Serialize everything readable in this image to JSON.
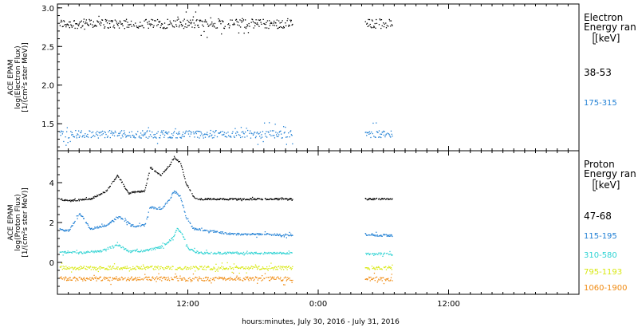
{
  "x_axis": {
    "label": "hours:minutes, July 30, 2016 - July 31, 2016",
    "range_hours": [
      0,
      48
    ],
    "ticks": [
      {
        "hour": 12,
        "label": "12:00"
      },
      {
        "hour": 24,
        "label": "0:00"
      },
      {
        "hour": 36,
        "label": "12:00"
      }
    ]
  },
  "chart_data": [
    {
      "type": "scatter",
      "instrument": "ACE EPAM",
      "ylabel_lines": [
        "ACE EPAM",
        "log(Electron Flux)",
        "[1/(cm²s ster MeV)]"
      ],
      "ylim": [
        1.15,
        3.05
      ],
      "yticks": [
        1.5,
        2.0,
        2.5,
        3.0
      ],
      "ytick_labels": [
        "1.5",
        "2.0",
        "2.5",
        "3.0"
      ],
      "legend_title": [
        "Electron",
        "Energy ran",
        "[keV]"
      ],
      "series": [
        {
          "name": "38-53",
          "color": "#000000",
          "mean": 2.8,
          "noise": 0.06
        },
        {
          "name": "175-315",
          "color": "#1f7fd4",
          "mean": 1.37,
          "noise": 0.05
        }
      ],
      "coverage_hours": [
        [
          0.2,
          21.6
        ],
        [
          28.3,
          30.8
        ]
      ]
    },
    {
      "type": "scatter",
      "instrument": "ACE EPAM",
      "ylabel_lines": [
        "ACE EPAM",
        "log(Proton Flux)",
        "[1/(cm²s ster MeV)]"
      ],
      "ylim": [
        -1.6,
        5.6
      ],
      "yticks": [
        0,
        2,
        4
      ],
      "ytick_labels": [
        "0",
        "2",
        "4"
      ],
      "legend_title": [
        "Proton",
        "Energy ran",
        "[keV]"
      ],
      "series": [
        {
          "name": "47-68",
          "color": "#000000",
          "mean": 3.15,
          "noise": 0.04,
          "profile": [
            [
              0,
              3.2
            ],
            [
              1,
              3.1
            ],
            [
              3,
              3.2
            ],
            [
              4.5,
              3.6
            ],
            [
              5.5,
              4.4
            ],
            [
              6.5,
              3.5
            ],
            [
              8,
              3.6
            ],
            [
              8.5,
              4.8
            ],
            [
              9.5,
              4.4
            ],
            [
              10.3,
              4.9
            ],
            [
              10.7,
              5.3
            ],
            [
              11.3,
              5.0
            ],
            [
              11.8,
              4.0
            ],
            [
              12.5,
              3.3
            ],
            [
              13,
              3.2
            ],
            [
              48,
              3.2
            ]
          ]
        },
        {
          "name": "115-195",
          "color": "#1f7fd4",
          "mean": 1.35,
          "noise": 0.05,
          "profile": [
            [
              0,
              1.7
            ],
            [
              1,
              1.6
            ],
            [
              2,
              2.5
            ],
            [
              3,
              1.7
            ],
            [
              4.5,
              1.9
            ],
            [
              5.5,
              2.3
            ],
            [
              6,
              2.2
            ],
            [
              7,
              1.8
            ],
            [
              8,
              1.9
            ],
            [
              8.5,
              2.8
            ],
            [
              9.5,
              2.7
            ],
            [
              10.3,
              3.2
            ],
            [
              10.7,
              3.6
            ],
            [
              11.3,
              3.3
            ],
            [
              11.8,
              2.3
            ],
            [
              12.5,
              1.7
            ],
            [
              14,
              1.6
            ],
            [
              16,
              1.45
            ],
            [
              22,
              1.4
            ],
            [
              48,
              1.35
            ]
          ]
        },
        {
          "name": "310-580",
          "color": "#2fd3d3",
          "mean": 0.4,
          "noise": 0.05,
          "profile": [
            [
              0,
              0.55
            ],
            [
              2,
              0.5
            ],
            [
              4,
              0.6
            ],
            [
              5.5,
              0.9
            ],
            [
              6.5,
              0.6
            ],
            [
              8,
              0.6
            ],
            [
              9.5,
              0.8
            ],
            [
              10.5,
              1.2
            ],
            [
              11,
              1.7
            ],
            [
              11.5,
              1.4
            ],
            [
              12,
              0.7
            ],
            [
              13,
              0.5
            ],
            [
              48,
              0.4
            ]
          ]
        },
        {
          "name": "795-1193",
          "color": "#d8e810",
          "mean": -0.25,
          "noise": 0.09
        },
        {
          "name": "1060-1900",
          "color": "#f08a10",
          "mean": -0.8,
          "noise": 0.1
        }
      ],
      "coverage_hours": [
        [
          0.2,
          21.6
        ],
        [
          28.3,
          30.8
        ]
      ]
    }
  ]
}
